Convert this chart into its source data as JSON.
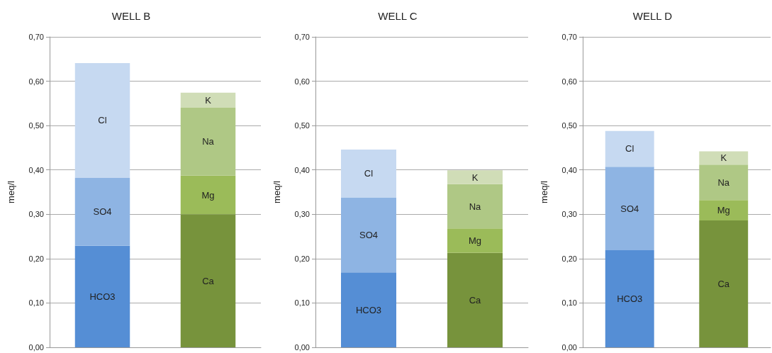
{
  "chart_data": [
    {
      "type": "bar",
      "title": "WELL B",
      "ylabel": "meq/l",
      "categories": [
        null,
        null
      ],
      "stacked": true,
      "grid": "y",
      "ylim": [
        0,
        0.7
      ],
      "yticks": [
        {
          "value": 0,
          "label": "0,00"
        },
        {
          "value": 0.1,
          "label": "0,10"
        },
        {
          "value": 0.2,
          "label": "0,20"
        },
        {
          "value": 0.3,
          "label": "0,30"
        },
        {
          "value": 0.4,
          "label": "0,40"
        },
        {
          "value": 0.5,
          "label": "0,50"
        },
        {
          "value": 0.6,
          "label": "0,60"
        },
        {
          "value": 0.7,
          "label": "0,70"
        }
      ],
      "series": [
        {
          "name": "HCO3",
          "color": "#558ed5",
          "values": [
            0.229,
            null
          ]
        },
        {
          "name": "SO4",
          "color": "#8eb4e3",
          "values": [
            0.153,
            null
          ]
        },
        {
          "name": "Cl",
          "color": "#c6d9f1",
          "values": [
            0.259,
            null
          ]
        },
        {
          "name": "Ca",
          "color": "#77933c",
          "values": [
            null,
            0.3
          ]
        },
        {
          "name": "Mg",
          "color": "#9bbb59",
          "values": [
            null,
            0.087
          ]
        },
        {
          "name": "Na",
          "color": "#afc885",
          "values": [
            null,
            0.153
          ]
        },
        {
          "name": "K",
          "color": "#d0ddb7",
          "values": [
            null,
            0.034
          ]
        }
      ]
    },
    {
      "type": "bar",
      "title": "WELL C",
      "ylabel": "meq/l",
      "categories": [
        null,
        null
      ],
      "stacked": true,
      "grid": "y",
      "ylim": [
        0,
        0.7
      ],
      "yticks": [
        {
          "value": 0,
          "label": "0,00"
        },
        {
          "value": 0.1,
          "label": "0,10"
        },
        {
          "value": 0.2,
          "label": "0,20"
        },
        {
          "value": 0.3,
          "label": "0,30"
        },
        {
          "value": 0.4,
          "label": "0,40"
        },
        {
          "value": 0.5,
          "label": "0,50"
        },
        {
          "value": 0.6,
          "label": "0,60"
        },
        {
          "value": 0.7,
          "label": "0,70"
        }
      ],
      "series": [
        {
          "name": "HCO3",
          "color": "#558ed5",
          "values": [
            0.169,
            null
          ]
        },
        {
          "name": "SO4",
          "color": "#8eb4e3",
          "values": [
            0.169,
            null
          ]
        },
        {
          "name": "Cl",
          "color": "#c6d9f1",
          "values": [
            0.108,
            null
          ]
        },
        {
          "name": "Ca",
          "color": "#77933c",
          "values": [
            null,
            0.213
          ]
        },
        {
          "name": "Mg",
          "color": "#9bbb59",
          "values": [
            null,
            0.055
          ]
        },
        {
          "name": "Na",
          "color": "#afc885",
          "values": [
            null,
            0.1
          ]
        },
        {
          "name": "K",
          "color": "#d0ddb7",
          "values": [
            null,
            0.031
          ]
        }
      ]
    },
    {
      "type": "bar",
      "title": "WELL D",
      "ylabel": "meq/l",
      "categories": [
        null,
        null
      ],
      "stacked": true,
      "grid": "y",
      "ylim": [
        0,
        0.7
      ],
      "yticks": [
        {
          "value": 0,
          "label": "0,00"
        },
        {
          "value": 0.1,
          "label": "0,10"
        },
        {
          "value": 0.2,
          "label": "0,20"
        },
        {
          "value": 0.3,
          "label": "0,30"
        },
        {
          "value": 0.4,
          "label": "0,40"
        },
        {
          "value": 0.5,
          "label": "0,50"
        },
        {
          "value": 0.6,
          "label": "0,60"
        },
        {
          "value": 0.7,
          "label": "0,70"
        }
      ],
      "series": [
        {
          "name": "HCO3",
          "color": "#558ed5",
          "values": [
            0.219,
            null
          ]
        },
        {
          "name": "SO4",
          "color": "#8eb4e3",
          "values": [
            0.188,
            null
          ]
        },
        {
          "name": "Cl",
          "color": "#c6d9f1",
          "values": [
            0.081,
            null
          ]
        },
        {
          "name": "Ca",
          "color": "#77933c",
          "values": [
            null,
            0.286
          ]
        },
        {
          "name": "Mg",
          "color": "#9bbb59",
          "values": [
            null,
            0.046
          ]
        },
        {
          "name": "Na",
          "color": "#afc885",
          "values": [
            null,
            0.08
          ]
        },
        {
          "name": "K",
          "color": "#d0ddb7",
          "values": [
            null,
            0.03
          ]
        }
      ]
    }
  ]
}
